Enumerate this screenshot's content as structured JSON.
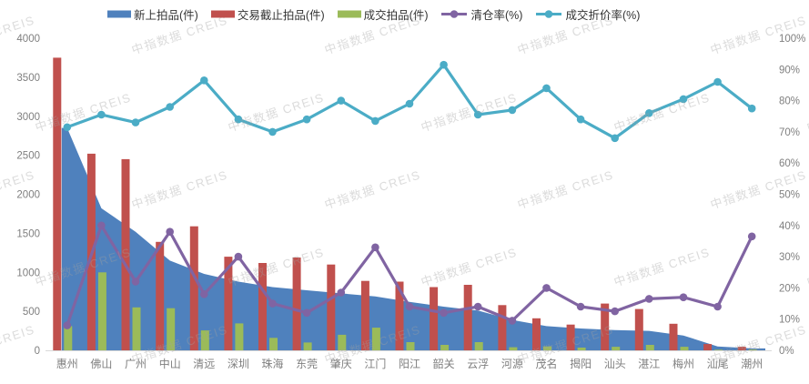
{
  "watermark": {
    "text": "中指数据 CREIS"
  },
  "chart_data": {
    "type": "combo",
    "title": "",
    "xlabel": "",
    "ylabel_left": "件",
    "ylabel_right": "%",
    "grid": false,
    "legend_position": "top",
    "categories": [
      "惠州",
      "佛山",
      "广州",
      "中山",
      "清远",
      "深圳",
      "珠海",
      "东莞",
      "肇庆",
      "江门",
      "阳江",
      "韶关",
      "云浮",
      "河源",
      "茂名",
      "揭阳",
      "汕头",
      "湛江",
      "梅州",
      "汕尾",
      "潮州"
    ],
    "series": [
      {
        "name": "新上拍品(件)",
        "type": "area",
        "axis": "left",
        "color": "#4F81BD",
        "values": [
          2850,
          1820,
          1520,
          1150,
          980,
          880,
          810,
          770,
          730,
          690,
          620,
          560,
          510,
          390,
          310,
          280,
          260,
          250,
          190,
          50,
          25
        ]
      },
      {
        "name": "交易截止拍品(件)",
        "type": "bar",
        "axis": "left",
        "color": "#C0504D",
        "values": [
          3750,
          2520,
          2450,
          1390,
          1590,
          1200,
          1120,
          1190,
          1100,
          890,
          880,
          810,
          840,
          580,
          410,
          330,
          600,
          530,
          340,
          80,
          45
        ]
      },
      {
        "name": "成交拍品(件)",
        "type": "bar",
        "axis": "left",
        "color": "#9BBB59",
        "values": [
          310,
          1000,
          550,
          540,
          255,
          345,
          160,
          100,
          200,
          290,
          105,
          70,
          105,
          40,
          50,
          35,
          45,
          70,
          45,
          8,
          10
        ]
      },
      {
        "name": "清仓率(%)",
        "type": "line",
        "axis": "right",
        "color": "#8064A2",
        "values": [
          8,
          40,
          22,
          38,
          18,
          30,
          15,
          12,
          18.5,
          33,
          14,
          12,
          14,
          9.5,
          20,
          14,
          12.5,
          16.5,
          17,
          14,
          36.5
        ]
      },
      {
        "name": "成交折价率(%)",
        "type": "line",
        "axis": "right",
        "color": "#4BACC6",
        "values": [
          71.5,
          75.5,
          73,
          78,
          86.5,
          74,
          70,
          74,
          80,
          73.5,
          79,
          91.5,
          75.5,
          77,
          84,
          74,
          68,
          76,
          80.5,
          86,
          77.5
        ]
      }
    ],
    "left_axis": {
      "min": 0,
      "max": 4000,
      "step": 500,
      "ticks": [
        "0",
        "500",
        "1000",
        "1500",
        "2000",
        "2500",
        "3000",
        "3500",
        "4000"
      ]
    },
    "right_axis": {
      "min": 0,
      "max": 100,
      "step": 10,
      "ticks": [
        "0%",
        "10%",
        "20%",
        "30%",
        "40%",
        "50%",
        "60%",
        "70%",
        "80%",
        "90%",
        "100%"
      ]
    }
  }
}
